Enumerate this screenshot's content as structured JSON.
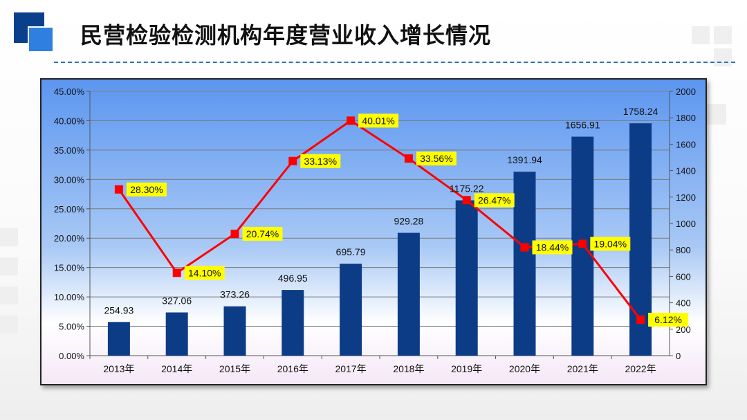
{
  "page": {
    "title": "民营检验检测机构年度营业收入增长情况"
  },
  "colors": {
    "accent_dark": "#0a3f8c",
    "accent_light": "#2f7fe0",
    "bar": "#0d3c87",
    "line": "#ff0000",
    "label_bg": "#ffff00"
  },
  "chart_data": {
    "type": "bar",
    "title": "",
    "categories": [
      "2013年",
      "2014年",
      "2015年",
      "2016年",
      "2017年",
      "2018年",
      "2019年",
      "2020年",
      "2021年",
      "2022年"
    ],
    "bar_values_text": [
      "254.93",
      "327.06",
      "373.26",
      "496.95",
      "695.79",
      "929.28",
      "1175.22",
      "1391.94",
      "1656.91",
      "1758.24"
    ],
    "rate_text": [
      "28.30%",
      "14.10%",
      "20.74%",
      "33.13%",
      "40.01%",
      "33.56%",
      "26.47%",
      "18.44%",
      "19.04%",
      "6.12%"
    ],
    "series": [
      {
        "type": "bar",
        "axis": "right",
        "values": [
          254.93,
          327.06,
          373.26,
          496.95,
          695.79,
          929.28,
          1175.22,
          1391.94,
          1656.91,
          1758.24
        ]
      },
      {
        "type": "line",
        "axis": "left",
        "values": [
          28.3,
          14.1,
          20.74,
          33.13,
          40.01,
          33.56,
          26.47,
          18.44,
          19.04,
          6.12
        ]
      }
    ],
    "left_axis": {
      "range": [
        0,
        45
      ],
      "ticks": [
        "0.00%",
        "5.00%",
        "10.00%",
        "15.00%",
        "20.00%",
        "25.00%",
        "30.00%",
        "35.00%",
        "40.00%",
        "45.00%"
      ]
    },
    "right_axis": {
      "range": [
        0,
        2000
      ],
      "ticks": [
        "0",
        "200",
        "400",
        "600",
        "800",
        "1000",
        "1200",
        "1400",
        "1600",
        "1800",
        "2000"
      ]
    },
    "grid": true,
    "legend": "none"
  }
}
